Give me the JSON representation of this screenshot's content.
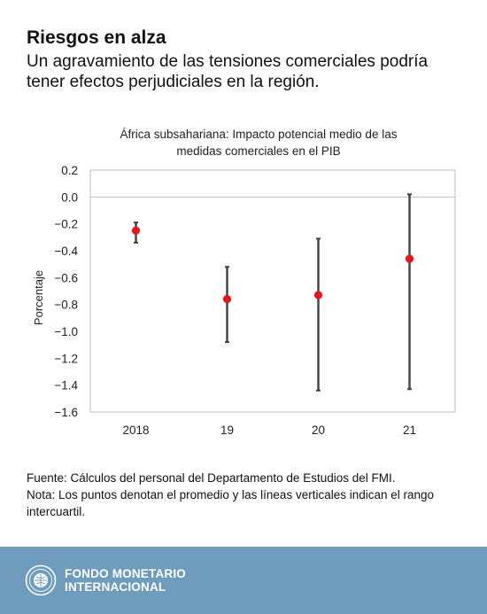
{
  "headline": {
    "title": "Riesgos en alza",
    "subtitle": "Un agravamiento de las tensiones comerciales podría tener efectos perjudiciales en la región."
  },
  "chart_data": {
    "type": "scatter",
    "title_line1": "África subsahariana: Impacto potencial medio de las",
    "title_line2": "medidas comerciales en el PIB",
    "ylabel": "Porcentaje",
    "xlabel": "",
    "ylim": [
      -1.6,
      0.2
    ],
    "yticks": [
      "0.2",
      "0.0",
      "−0.2",
      "−0.4",
      "−0.6",
      "−0.8",
      "−1.0",
      "−1.2",
      "−1.4",
      "−1.6"
    ],
    "ytick_values": [
      0.2,
      0.0,
      -0.2,
      -0.4,
      -0.6,
      -0.8,
      -1.0,
      -1.2,
      -1.4,
      -1.6
    ],
    "categories": [
      "2018",
      "19",
      "20",
      "21"
    ],
    "mean": [
      -0.25,
      -0.76,
      -0.73,
      -0.46
    ],
    "low": [
      -0.34,
      -1.08,
      -1.44,
      -1.43
    ],
    "high": [
      -0.19,
      -0.52,
      -0.31,
      0.02
    ],
    "point_color": "#e8141b",
    "range_color": "#404040",
    "grid": false
  },
  "notes": {
    "source": "Fuente: Cálculos del personal del Departamento de Estudios del FMI.",
    "note": "Nota: Los puntos denotan el promedio y las líneas verticales indican el rango intercuartil."
  },
  "footer": {
    "org_line1": "FONDO MONETARIO",
    "org_line2": "INTERNACIONAL",
    "logo_icon": "imf-seal-icon",
    "background": "#6f9cbd"
  }
}
